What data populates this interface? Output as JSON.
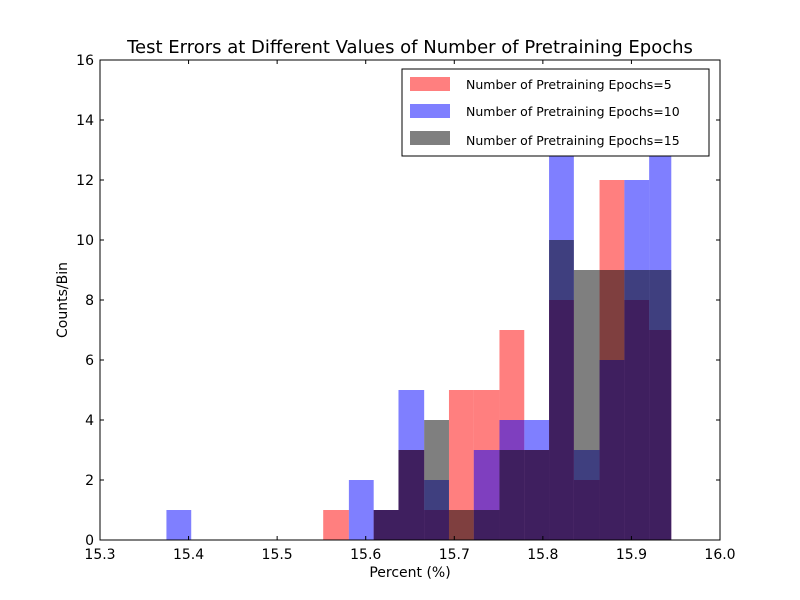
{
  "chart_data": {
    "type": "bar",
    "title": "Test Errors at Different Values of Number of Pretraining Epochs",
    "xlabel": "Percent (%)",
    "ylabel": "Counts/Bin",
    "xlim": [
      15.3,
      16.0
    ],
    "ylim": [
      0,
      16
    ],
    "xticks": [
      "15.3",
      "15.4",
      "15.5",
      "15.6",
      "15.7",
      "15.8",
      "15.9",
      "16.0"
    ],
    "yticks": [
      "0",
      "2",
      "4",
      "6",
      "8",
      "10",
      "12",
      "14",
      "16"
    ],
    "grid": false,
    "legend_position": "top-right",
    "series": [
      {
        "name": "Number of Pretraining Epochs=5",
        "color": "#ff0000",
        "bins": [
          {
            "x0": 15.552,
            "x1": 15.581,
            "count": 1
          },
          {
            "x0": 15.609,
            "x1": 15.637,
            "count": 1
          },
          {
            "x0": 15.637,
            "x1": 15.666,
            "count": 3
          },
          {
            "x0": 15.666,
            "x1": 15.694,
            "count": 1
          },
          {
            "x0": 15.694,
            "x1": 15.722,
            "count": 5
          },
          {
            "x0": 15.722,
            "x1": 15.751,
            "count": 5
          },
          {
            "x0": 15.751,
            "x1": 15.779,
            "count": 7
          },
          {
            "x0": 15.779,
            "x1": 15.807,
            "count": 3
          },
          {
            "x0": 15.807,
            "x1": 15.835,
            "count": 8
          },
          {
            "x0": 15.835,
            "x1": 15.864,
            "count": 2
          },
          {
            "x0": 15.864,
            "x1": 15.892,
            "count": 12
          },
          {
            "x0": 15.892,
            "x1": 15.92,
            "count": 8
          },
          {
            "x0": 15.92,
            "x1": 15.945,
            "count": 7
          }
        ]
      },
      {
        "name": "Number of Pretraining Epochs=10",
        "color": "#0000ff",
        "bins": [
          {
            "x0": 15.375,
            "x1": 15.403,
            "count": 1
          },
          {
            "x0": 15.581,
            "x1": 15.609,
            "count": 2
          },
          {
            "x0": 15.609,
            "x1": 15.637,
            "count": 1
          },
          {
            "x0": 15.637,
            "x1": 15.666,
            "count": 5
          },
          {
            "x0": 15.666,
            "x1": 15.694,
            "count": 2
          },
          {
            "x0": 15.722,
            "x1": 15.751,
            "count": 3
          },
          {
            "x0": 15.751,
            "x1": 15.779,
            "count": 4
          },
          {
            "x0": 15.779,
            "x1": 15.807,
            "count": 4
          },
          {
            "x0": 15.807,
            "x1": 15.835,
            "count": 13
          },
          {
            "x0": 15.835,
            "x1": 15.864,
            "count": 3
          },
          {
            "x0": 15.864,
            "x1": 15.892,
            "count": 6
          },
          {
            "x0": 15.892,
            "x1": 15.92,
            "count": 12
          },
          {
            "x0": 15.92,
            "x1": 15.945,
            "count": 13
          }
        ]
      },
      {
        "name": "Number of Pretraining Epochs=15",
        "color": "#000000",
        "bins": [
          {
            "x0": 15.609,
            "x1": 15.637,
            "count": 1
          },
          {
            "x0": 15.637,
            "x1": 15.666,
            "count": 3
          },
          {
            "x0": 15.666,
            "x1": 15.694,
            "count": 4
          },
          {
            "x0": 15.694,
            "x1": 15.722,
            "count": 1
          },
          {
            "x0": 15.722,
            "x1": 15.751,
            "count": 1
          },
          {
            "x0": 15.751,
            "x1": 15.779,
            "count": 3
          },
          {
            "x0": 15.779,
            "x1": 15.807,
            "count": 3
          },
          {
            "x0": 15.807,
            "x1": 15.835,
            "count": 10
          },
          {
            "x0": 15.835,
            "x1": 15.864,
            "count": 9
          },
          {
            "x0": 15.864,
            "x1": 15.892,
            "count": 9
          },
          {
            "x0": 15.892,
            "x1": 15.92,
            "count": 9
          },
          {
            "x0": 15.92,
            "x1": 15.945,
            "count": 9
          }
        ]
      }
    ]
  }
}
